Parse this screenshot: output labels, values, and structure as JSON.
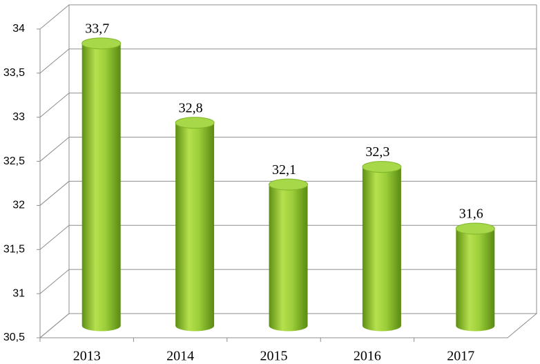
{
  "chart_data": {
    "type": "bar",
    "categories": [
      "2013",
      "2014",
      "2015",
      "2016",
      "2017"
    ],
    "values": [
      33.7,
      32.8,
      32.1,
      32.3,
      31.6
    ],
    "value_labels": [
      "33,7",
      "32,8",
      "32,1",
      "32,3",
      "31,6"
    ],
    "color": "#8cc63f",
    "ylim": [
      30.5,
      34
    ],
    "yticks": [
      {
        "value": 30.5,
        "label": "30,5"
      },
      31,
      {
        "value": 31.5,
        "label": "31,5"
      },
      32,
      {
        "value": 32.5,
        "label": "32,5"
      },
      33,
      {
        "value": 33.5,
        "label": "33,5"
      },
      34
    ],
    "grid": true
  }
}
